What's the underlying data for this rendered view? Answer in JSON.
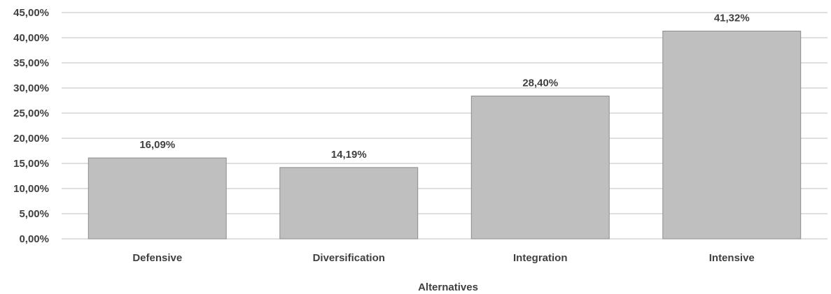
{
  "chart_data": {
    "type": "bar",
    "title": "",
    "xlabel": "Alternatives",
    "ylabel": "",
    "categories": [
      "Defensive",
      "Diversification",
      "Integration",
      "Intensive"
    ],
    "values": [
      16.09,
      14.19,
      28.4,
      41.32
    ],
    "value_labels": [
      "16,09%",
      "14,19%",
      "28,40%",
      "41,32%"
    ],
    "ylim": [
      0,
      45
    ],
    "yticks": [
      0,
      5,
      10,
      15,
      20,
      25,
      30,
      35,
      40,
      45
    ],
    "ytick_labels": [
      "0,00%",
      "5,00%",
      "10,00%",
      "15,00%",
      "20,00%",
      "25,00%",
      "30,00%",
      "35,00%",
      "40,00%",
      "45,00%"
    ],
    "grid": true,
    "legend": "none",
    "colors": {
      "bar_fill": "#bfbfbf",
      "bar_stroke": "#8c8c8c",
      "grid": "#bfbfbf",
      "text": "#404040"
    }
  }
}
